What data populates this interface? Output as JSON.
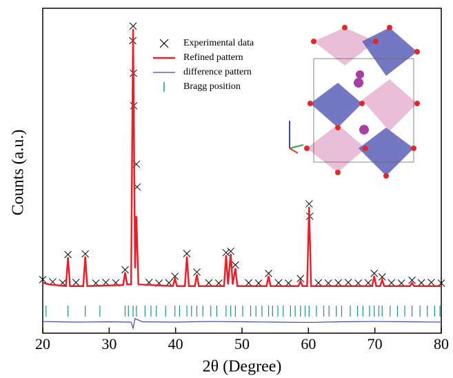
{
  "chart_data": {
    "type": "line",
    "xlabel": "2θ (Degree)",
    "ylabel": "Counts (a.u.)",
    "xlim": [
      20,
      80
    ],
    "xticks": [
      20,
      30,
      40,
      50,
      60,
      70,
      80
    ],
    "ylim": [
      0,
      100
    ],
    "legend": "upper center",
    "series": [
      {
        "name": "Experimental data",
        "color": "#000000",
        "marker": "x",
        "x": [
          20,
          21.5,
          23,
          23.8,
          25,
          26.4,
          28,
          29.5,
          31,
          32.4,
          33.55,
          33.6,
          33.65,
          33.7,
          34.1,
          34.2,
          36,
          37.5,
          39,
          39.9,
          41.7,
          43.2,
          45,
          46.5,
          47.6,
          48.3,
          49,
          51,
          52.5,
          54,
          55.5,
          57,
          58.8,
          60.1,
          60.2,
          61.5,
          63,
          64.5,
          66,
          67.5,
          69,
          69.9,
          71.1,
          72.5,
          74,
          75.6,
          77,
          78.5,
          80
        ],
        "values": [
          16.5,
          15.8,
          15.5,
          24.2,
          15.6,
          24.4,
          15.4,
          15.6,
          15.5,
          19.5,
          90,
          94.5,
          80,
          70,
          52,
          45,
          15.6,
          15.4,
          15.5,
          17.5,
          24.5,
          18.8,
          15.5,
          15.4,
          24.8,
          25.2,
          21,
          15.5,
          15.4,
          18.4,
          15.5,
          15.4,
          16.8,
          39.8,
          36,
          15.5,
          15.4,
          15.5,
          15.6,
          15.4,
          15.5,
          18.4,
          17.3,
          15.5,
          15.4,
          16.3,
          15.5,
          15.6,
          15.4
        ]
      },
      {
        "name": "Refined pattern",
        "color": "#e8202a",
        "x": [
          20,
          21,
          23.5,
          23.8,
          24.1,
          26.1,
          26.4,
          26.7,
          32.1,
          32.4,
          32.7,
          33.3,
          33.6,
          33.9,
          34.1,
          34.4,
          39.6,
          39.9,
          40.2,
          41.4,
          41.7,
          42,
          42.9,
          43.2,
          43.5,
          47.3,
          47.6,
          47.9,
          48.3,
          48.6,
          49,
          49.3,
          53.7,
          54,
          54.3,
          58.5,
          58.8,
          59.1,
          59.8,
          60.1,
          60.4,
          69.6,
          69.9,
          70.2,
          70.8,
          71.1,
          71.4,
          75.3,
          75.6,
          75.9,
          80
        ],
        "values": [
          15.5,
          15,
          14.5,
          23.4,
          14.5,
          14.5,
          23.6,
          14.5,
          14.8,
          18.7,
          15,
          15,
          93.6,
          20,
          36,
          15,
          14.5,
          16.8,
          14.5,
          14.5,
          23.6,
          14.5,
          14.5,
          18,
          14.5,
          14.5,
          24,
          15,
          24.4,
          15,
          20,
          14.5,
          14.5,
          17.6,
          14.5,
          14.5,
          16,
          14.5,
          14.5,
          38.9,
          14.5,
          14.5,
          17.6,
          14.5,
          14.5,
          16.5,
          14.5,
          14.5,
          15.5,
          14.5,
          14.5
        ]
      },
      {
        "name": "difference pattern",
        "color": "#3a46a8",
        "x": [
          20,
          25,
          30,
          33.3,
          33.6,
          33.9,
          35,
          40,
          45,
          50,
          55,
          60,
          65,
          70,
          75,
          80
        ],
        "values": [
          3.6,
          3.4,
          3.5,
          3.4,
          1.5,
          4.5,
          3.5,
          3.4,
          3.6,
          3.5,
          3.4,
          3.3,
          3.5,
          3.6,
          3.5,
          3.4
        ]
      }
    ],
    "bragg": {
      "name": "Bragg position",
      "color": "#1a8f8f",
      "x": [
        20.5,
        23.8,
        26.4,
        28.6,
        32.4,
        32.9,
        33.6,
        34.1,
        35.4,
        36.3,
        37.1,
        38.5,
        39.9,
        40.6,
        41.7,
        42.4,
        43.2,
        44.1,
        45.3,
        46.2,
        47.6,
        48.3,
        49.0,
        50.1,
        51.3,
        52.1,
        53.0,
        54.0,
        54.6,
        55.4,
        56.2,
        57.3,
        58.0,
        58.8,
        59.5,
        60.1,
        61.2,
        62.3,
        63.1,
        64.2,
        65.0,
        66.3,
        67.4,
        68.2,
        69.2,
        69.9,
        70.6,
        71.1,
        72.3,
        73.4,
        74.5,
        75.6,
        76.8,
        77.9,
        79.0,
        79.8
      ]
    }
  }
}
